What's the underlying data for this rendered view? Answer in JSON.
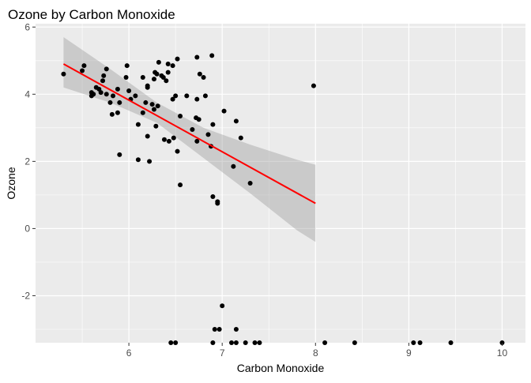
{
  "chart_data": {
    "type": "scatter",
    "title": "Ozone by Carbon Monoxide",
    "xlabel": "Carbon Monoxide",
    "ylabel": "Ozone",
    "xlim": [
      5.0,
      10.25
    ],
    "ylim": [
      -3.4,
      6.1
    ],
    "x_ticks": [
      6,
      7,
      8,
      9,
      10
    ],
    "y_ticks": [
      -2,
      0,
      2,
      4,
      6
    ],
    "grid": true,
    "colors": {
      "panel": "#ebebeb",
      "grid_major": "#ffffff",
      "points": "#000000",
      "fit_line": "#ff0000",
      "confidence_band": "#999999"
    },
    "points": [
      [
        5.3,
        4.6
      ],
      [
        5.5,
        4.7
      ],
      [
        5.52,
        4.85
      ],
      [
        5.6,
        4.05
      ],
      [
        5.6,
        3.95
      ],
      [
        5.62,
        4.0
      ],
      [
        5.65,
        4.2
      ],
      [
        5.68,
        4.15
      ],
      [
        5.7,
        4.05
      ],
      [
        5.72,
        4.4
      ],
      [
        5.73,
        4.55
      ],
      [
        5.76,
        4.75
      ],
      [
        5.76,
        4.0
      ],
      [
        5.8,
        3.75
      ],
      [
        5.82,
        3.4
      ],
      [
        5.83,
        3.95
      ],
      [
        5.88,
        3.45
      ],
      [
        5.88,
        4.15
      ],
      [
        5.9,
        3.75
      ],
      [
        5.9,
        2.2
      ],
      [
        5.97,
        4.5
      ],
      [
        5.98,
        4.85
      ],
      [
        6.0,
        4.1
      ],
      [
        6.02,
        3.85
      ],
      [
        6.07,
        3.95
      ],
      [
        6.1,
        3.1
      ],
      [
        6.1,
        2.05
      ],
      [
        6.15,
        3.45
      ],
      [
        6.15,
        4.5
      ],
      [
        6.18,
        3.75
      ],
      [
        6.2,
        4.25
      ],
      [
        6.2,
        4.2
      ],
      [
        6.2,
        2.75
      ],
      [
        6.22,
        2.0
      ],
      [
        6.25,
        3.7
      ],
      [
        6.27,
        3.55
      ],
      [
        6.27,
        4.45
      ],
      [
        6.28,
        4.65
      ],
      [
        6.29,
        3.05
      ],
      [
        6.3,
        4.6
      ],
      [
        6.31,
        3.65
      ],
      [
        6.32,
        4.95
      ],
      [
        6.35,
        4.55
      ],
      [
        6.37,
        4.5
      ],
      [
        6.38,
        2.65
      ],
      [
        6.4,
        4.4
      ],
      [
        6.42,
        4.9
      ],
      [
        6.42,
        4.65
      ],
      [
        6.43,
        2.6
      ],
      [
        6.47,
        4.85
      ],
      [
        6.47,
        3.85
      ],
      [
        6.48,
        2.7
      ],
      [
        6.5,
        3.95
      ],
      [
        6.52,
        5.05
      ],
      [
        6.52,
        2.3
      ],
      [
        6.55,
        3.35
      ],
      [
        6.55,
        1.3
      ],
      [
        6.62,
        3.95
      ],
      [
        6.68,
        2.95
      ],
      [
        6.72,
        3.3
      ],
      [
        6.73,
        3.85
      ],
      [
        6.73,
        2.6
      ],
      [
        6.73,
        5.1
      ],
      [
        6.75,
        3.25
      ],
      [
        6.76,
        4.6
      ],
      [
        6.8,
        4.5
      ],
      [
        6.82,
        3.95
      ],
      [
        6.85,
        2.8
      ],
      [
        6.88,
        2.45
      ],
      [
        6.89,
        5.15
      ],
      [
        6.9,
        3.1
      ],
      [
        6.9,
        0.95
      ],
      [
        6.95,
        0.8
      ],
      [
        6.95,
        0.75
      ],
      [
        7.02,
        3.5
      ],
      [
        7.12,
        1.85
      ],
      [
        7.15,
        3.2
      ],
      [
        7.2,
        2.7
      ],
      [
        7.3,
        1.35
      ],
      [
        7.98,
        4.25
      ],
      [
        7.0,
        -2.3
      ],
      [
        6.92,
        -3.0
      ],
      [
        6.97,
        -3.0
      ],
      [
        7.15,
        -3.0
      ]
    ],
    "clipped_points_at_bottom_edge": [
      6.45,
      6.5,
      6.9,
      7.1,
      7.15,
      7.25,
      7.35,
      7.4,
      8.1,
      8.42,
      9.05,
      9.12,
      9.45,
      10.0
    ],
    "fit_line": {
      "x": [
        5.3,
        8.0
      ],
      "y": [
        4.9,
        0.75
      ]
    },
    "confidence_band": {
      "x": [
        5.3,
        5.8,
        6.3,
        6.8,
        7.3,
        7.8,
        8.0
      ],
      "lower": [
        4.2,
        3.75,
        3.15,
        2.1,
        1.05,
        -0.05,
        -0.4
      ],
      "upper": [
        5.7,
        4.75,
        3.75,
        3.0,
        2.5,
        2.05,
        1.9
      ]
    }
  }
}
